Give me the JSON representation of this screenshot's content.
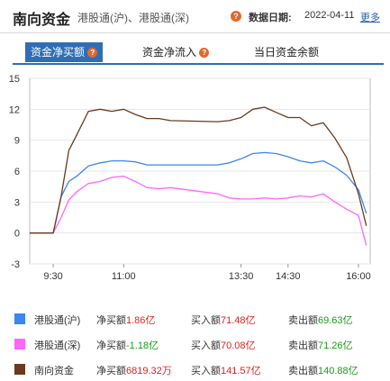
{
  "header": {
    "title": "南向资金",
    "subtitle": "港股通(沪)、港股通(深)",
    "date_label": "数据日期:",
    "date_value": "2022-04-11",
    "more_label": "更多"
  },
  "tabs": [
    {
      "label": "资金净买额",
      "active": true
    },
    {
      "label": "资金净流入",
      "active": false
    },
    {
      "label": "当日资金余额",
      "active": false
    }
  ],
  "colors": {
    "hk_sh": "#3a87f0",
    "hk_sz": "#ff66ff",
    "south": "#6b3a1c",
    "accent": "#2f6eb5",
    "red": "#e02020",
    "green": "#1a9a1a"
  },
  "chart_data": {
    "type": "line",
    "x_ticks": [
      "9:30",
      "11:00",
      "13:30",
      "14:30",
      "16:00"
    ],
    "y_ticks": [
      15,
      12,
      9,
      6,
      3,
      0,
      -3
    ],
    "ylim": [
      -3,
      15
    ],
    "x_time": [
      "09:00",
      "09:30",
      "09:40",
      "09:50",
      "10:00",
      "10:15",
      "10:30",
      "10:45",
      "11:00",
      "11:15",
      "11:30",
      "11:45",
      "12:00",
      "13:00",
      "13:15",
      "13:30",
      "13:45",
      "14:00",
      "14:15",
      "14:30",
      "14:45",
      "15:00",
      "15:15",
      "15:30",
      "15:45",
      "16:00",
      "16:10"
    ],
    "series": [
      {
        "name": "港股通(沪)",
        "values": [
          0,
          0,
          3.5,
          5.0,
          5.5,
          6.5,
          6.8,
          7.0,
          7.0,
          6.9,
          6.6,
          6.6,
          6.6,
          6.6,
          6.8,
          7.2,
          7.7,
          7.8,
          7.7,
          7.4,
          7.0,
          6.8,
          7.0,
          6.4,
          5.6,
          4.2,
          1.9
        ]
      },
      {
        "name": "港股通(深)",
        "values": [
          0,
          0,
          1.5,
          3.2,
          4.0,
          4.8,
          5.0,
          5.4,
          5.5,
          5.0,
          4.4,
          4.3,
          4.4,
          3.8,
          3.4,
          3.3,
          3.3,
          3.4,
          3.3,
          3.4,
          3.6,
          3.5,
          3.8,
          3.0,
          2.3,
          1.7,
          -1.2
        ]
      },
      {
        "name": "南向资金",
        "values": [
          0,
          0,
          3.5,
          8.0,
          9.5,
          11.8,
          12.0,
          11.8,
          12.0,
          11.5,
          11.1,
          11.1,
          10.9,
          10.8,
          10.9,
          11.2,
          12.0,
          12.2,
          11.7,
          11.2,
          11.2,
          10.4,
          10.7,
          9.2,
          7.3,
          3.8,
          0.7
        ]
      }
    ]
  },
  "legend": [
    {
      "name": "港股通(沪)",
      "net_label": "净买额",
      "net_value": "1.86亿",
      "buy_label": "买入额",
      "buy_value": "71.48亿",
      "sell_label": "卖出额",
      "sell_value": "69.63亿"
    },
    {
      "name": "港股通(深)",
      "net_label": "净买额",
      "net_value": "-1.18亿",
      "buy_label": "买入额",
      "buy_value": "70.08亿",
      "sell_label": "卖出额",
      "sell_value": "71.26亿"
    },
    {
      "name": "南向资金",
      "net_label": "净买额",
      "net_value": "6819.32万",
      "buy_label": "买入额",
      "buy_value": "141.57亿",
      "sell_label": "卖出额",
      "sell_value": "140.88亿"
    }
  ]
}
